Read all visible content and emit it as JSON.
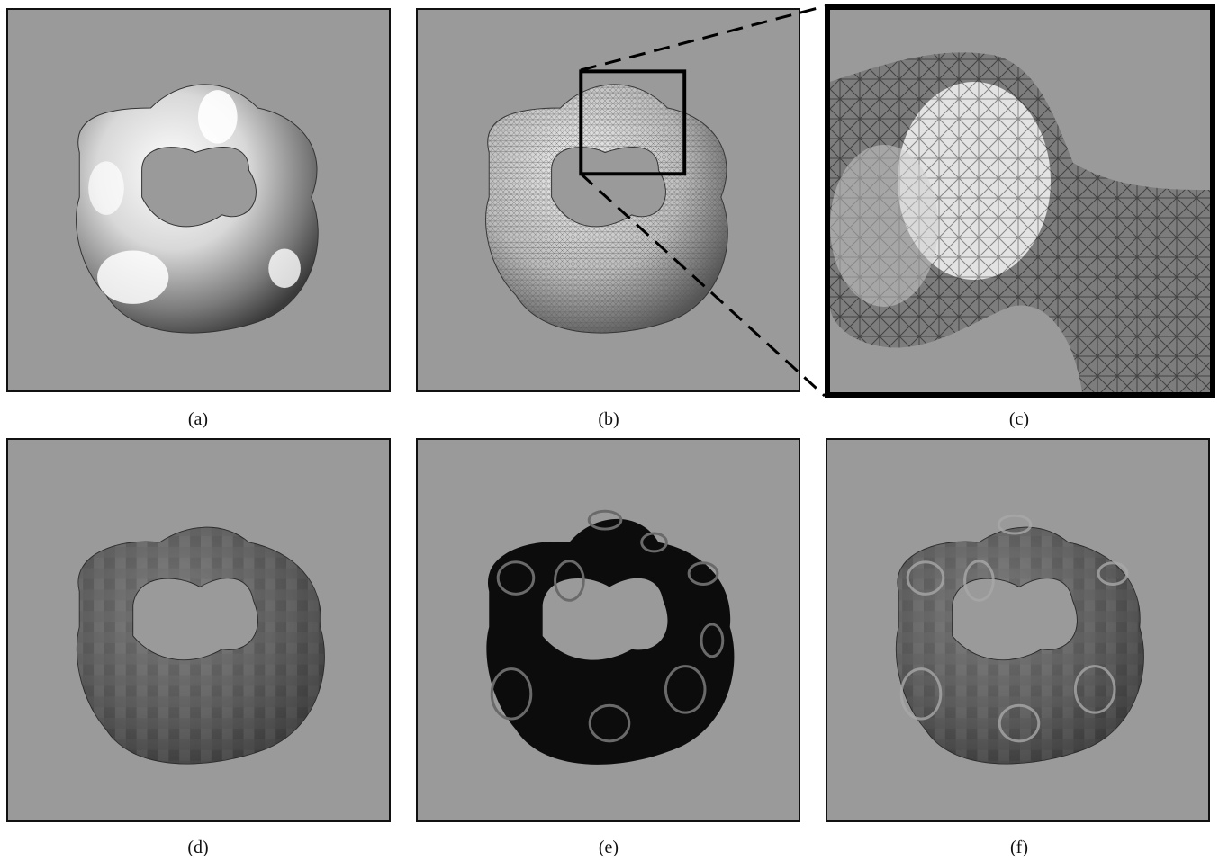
{
  "figure": {
    "panels": [
      {
        "id": "a",
        "caption": "(a)",
        "render": "shaded surface"
      },
      {
        "id": "b",
        "caption": "(b)",
        "render": "wireframe mesh with zoom box"
      },
      {
        "id": "c",
        "caption": "(c)",
        "render": "zoomed wireframe detail"
      },
      {
        "id": "d",
        "caption": "(d)",
        "render": "textured surface"
      },
      {
        "id": "e",
        "caption": "(e)",
        "render": "dark surface with ring patterns"
      },
      {
        "id": "f",
        "caption": "(f)",
        "render": "textured surface with ring patterns"
      }
    ],
    "colors": {
      "background": "#9a9a9a",
      "panel_border": "#111111",
      "zoom_box": "#000000"
    }
  }
}
